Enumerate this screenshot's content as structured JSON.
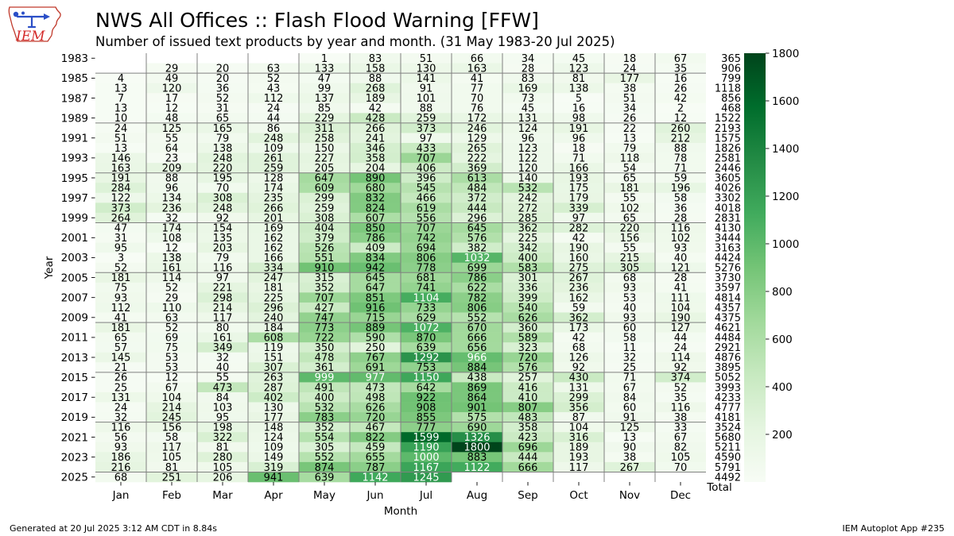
{
  "logo": {
    "text": "IEM"
  },
  "chart_data": {
    "type": "heatmap",
    "title": "NWS All Offices :: Flash Flood Warning [FFW]",
    "subtitle": "Number of issued text products by year and month. (31 May 1983-20 Jul 2025)",
    "xlabel": "Month",
    "ylabel": "Year",
    "x_categories": [
      "Jan",
      "Feb",
      "Mar",
      "Apr",
      "May",
      "Jun",
      "Jul",
      "Aug",
      "Sep",
      "Oct",
      "Nov",
      "Dec"
    ],
    "total_label": "Total",
    "years": [
      1983,
      1984,
      1985,
      1986,
      1987,
      1988,
      1989,
      1990,
      1991,
      1992,
      1993,
      1994,
      1995,
      1996,
      1997,
      1998,
      1999,
      2000,
      2001,
      2002,
      2003,
      2004,
      2005,
      2006,
      2007,
      2008,
      2009,
      2010,
      2011,
      2012,
      2013,
      2014,
      2015,
      2016,
      2017,
      2018,
      2019,
      2020,
      2021,
      2022,
      2023,
      2024,
      2025
    ],
    "values": [
      [
        null,
        null,
        null,
        null,
        1,
        83,
        51,
        66,
        34,
        45,
        18,
        67
      ],
      [
        null,
        29,
        20,
        63,
        133,
        158,
        130,
        163,
        28,
        123,
        24,
        35
      ],
      [
        4,
        49,
        20,
        52,
        47,
        88,
        141,
        41,
        83,
        81,
        177,
        16
      ],
      [
        13,
        120,
        36,
        43,
        99,
        268,
        91,
        77,
        169,
        138,
        38,
        26
      ],
      [
        7,
        17,
        52,
        112,
        137,
        189,
        101,
        70,
        73,
        5,
        51,
        42
      ],
      [
        13,
        12,
        31,
        24,
        85,
        42,
        88,
        76,
        45,
        16,
        34,
        2
      ],
      [
        10,
        48,
        65,
        44,
        229,
        428,
        259,
        172,
        131,
        98,
        26,
        12
      ],
      [
        24,
        125,
        165,
        86,
        311,
        266,
        373,
        246,
        124,
        191,
        22,
        260
      ],
      [
        51,
        55,
        79,
        248,
        258,
        241,
        97,
        129,
        96,
        96,
        13,
        212
      ],
      [
        13,
        64,
        138,
        109,
        150,
        346,
        433,
        265,
        123,
        18,
        79,
        88
      ],
      [
        146,
        23,
        248,
        261,
        227,
        358,
        707,
        222,
        122,
        71,
        118,
        78
      ],
      [
        163,
        209,
        220,
        259,
        205,
        204,
        406,
        369,
        120,
        166,
        54,
        71
      ],
      [
        191,
        88,
        195,
        128,
        647,
        890,
        396,
        613,
        140,
        193,
        65,
        59
      ],
      [
        284,
        96,
        70,
        174,
        609,
        680,
        545,
        484,
        532,
        175,
        181,
        196
      ],
      [
        122,
        134,
        308,
        235,
        299,
        832,
        466,
        372,
        242,
        179,
        55,
        58
      ],
      [
        373,
        236,
        248,
        266,
        259,
        824,
        619,
        444,
        272,
        339,
        102,
        36
      ],
      [
        264,
        32,
        92,
        201,
        308,
        607,
        556,
        296,
        285,
        97,
        65,
        28
      ],
      [
        47,
        174,
        154,
        169,
        404,
        850,
        707,
        645,
        362,
        282,
        220,
        116
      ],
      [
        31,
        108,
        135,
        162,
        379,
        786,
        742,
        576,
        225,
        42,
        156,
        102
      ],
      [
        95,
        12,
        203,
        162,
        526,
        409,
        694,
        382,
        342,
        190,
        55,
        93
      ],
      [
        3,
        138,
        79,
        166,
        551,
        834,
        806,
        1032,
        400,
        160,
        215,
        40
      ],
      [
        52,
        161,
        116,
        334,
        910,
        942,
        778,
        699,
        583,
        275,
        305,
        121
      ],
      [
        181,
        114,
        97,
        247,
        315,
        645,
        681,
        786,
        301,
        267,
        68,
        28
      ],
      [
        75,
        52,
        221,
        181,
        352,
        647,
        741,
        622,
        336,
        236,
        93,
        41
      ],
      [
        93,
        29,
        298,
        225,
        707,
        851,
        1104,
        782,
        399,
        162,
        53,
        111
      ],
      [
        112,
        110,
        214,
        296,
        427,
        916,
        733,
        806,
        540,
        59,
        40,
        104
      ],
      [
        41,
        63,
        117,
        240,
        747,
        715,
        629,
        552,
        626,
        362,
        93,
        190
      ],
      [
        181,
        52,
        80,
        184,
        773,
        889,
        1072,
        670,
        360,
        173,
        60,
        127
      ],
      [
        65,
        69,
        161,
        608,
        722,
        590,
        870,
        666,
        589,
        42,
        58,
        44
      ],
      [
        57,
        75,
        349,
        119,
        350,
        250,
        639,
        656,
        323,
        68,
        11,
        24
      ],
      [
        145,
        53,
        32,
        151,
        478,
        767,
        1292,
        966,
        720,
        126,
        32,
        114
      ],
      [
        21,
        53,
        40,
        307,
        361,
        691,
        753,
        884,
        576,
        92,
        25,
        92
      ],
      [
        26,
        12,
        55,
        263,
        999,
        977,
        1150,
        438,
        257,
        430,
        71,
        374
      ],
      [
        25,
        67,
        473,
        287,
        491,
        473,
        642,
        869,
        416,
        131,
        67,
        52
      ],
      [
        131,
        104,
        84,
        402,
        400,
        498,
        922,
        864,
        410,
        299,
        84,
        35
      ],
      [
        24,
        214,
        103,
        130,
        532,
        626,
        908,
        901,
        807,
        356,
        60,
        116
      ],
      [
        32,
        245,
        95,
        177,
        783,
        720,
        855,
        575,
        483,
        87,
        91,
        38
      ],
      [
        116,
        156,
        198,
        148,
        352,
        467,
        777,
        690,
        358,
        104,
        125,
        33
      ],
      [
        56,
        58,
        322,
        124,
        554,
        822,
        1599,
        1326,
        423,
        316,
        13,
        67
      ],
      [
        93,
        117,
        81,
        109,
        305,
        459,
        1190,
        1800,
        696,
        189,
        90,
        82
      ],
      [
        186,
        105,
        280,
        149,
        552,
        655,
        1000,
        883,
        444,
        193,
        38,
        105
      ],
      [
        216,
        81,
        105,
        319,
        874,
        787,
        1167,
        1122,
        666,
        117,
        267,
        70
      ],
      [
        68,
        251,
        206,
        941,
        639,
        1142,
        1245,
        null,
        null,
        null,
        null,
        null
      ]
    ],
    "totals": [
      365,
      906,
      799,
      1118,
      856,
      468,
      1522,
      2193,
      1575,
      1826,
      2581,
      2446,
      3605,
      4026,
      3302,
      4018,
      2831,
      4130,
      3444,
      3163,
      4424,
      5276,
      3730,
      3597,
      4814,
      4357,
      4375,
      4621,
      4484,
      2921,
      4876,
      3895,
      5052,
      3993,
      4233,
      4777,
      4181,
      3524,
      5680,
      5211,
      4590,
      5791,
      4492
    ],
    "colorbar": {
      "zlim": [
        0,
        1800
      ],
      "ticks": [
        200,
        400,
        600,
        800,
        1000,
        1200,
        1400,
        1600,
        1800
      ],
      "position": "right"
    },
    "colormap_stops": [
      "#f7fcf5",
      "#e5f5e0",
      "#c7e9c0",
      "#a1d99b",
      "#74c476",
      "#41ab5d",
      "#238b45",
      "#006d2c",
      "#00441b"
    ],
    "grid": true
  },
  "colors": {
    "separator": "#808080",
    "text_on_light": "#000000",
    "text_on_dark": "#ffffff"
  },
  "footer": {
    "left": "Generated at 20 Jul 2025 3:12 AM CDT in 8.84s",
    "right": "IEM Autoplot App #235"
  }
}
